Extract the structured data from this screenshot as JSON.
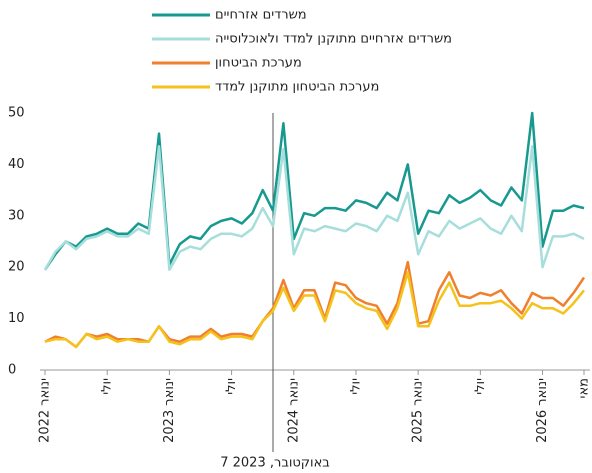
{
  "chart_data": {
    "type": "line",
    "categories": [
      "ינואר 2022",
      null,
      null,
      null,
      null,
      null,
      "יולי",
      null,
      null,
      null,
      null,
      null,
      "ינואר 2023",
      null,
      null,
      null,
      null,
      null,
      "יולי",
      null,
      null,
      null,
      null,
      null,
      "ינואר 2024",
      null,
      null,
      null,
      null,
      null,
      "יולי",
      null,
      null,
      null,
      null,
      null,
      "ינואר 2025",
      null,
      null,
      null,
      null,
      null,
      "יולי",
      null,
      null,
      null,
      null,
      null,
      "ינואר 2026",
      null,
      null,
      null,
      "מאי"
    ],
    "series": [
      {
        "name": "משרדים אזרחיים",
        "color": "#17998f",
        "values": [
          19.5,
          22.5,
          25,
          24,
          26,
          26.5,
          27.5,
          26.5,
          26.5,
          28.5,
          27.5,
          46,
          20.5,
          24.5,
          26,
          25.5,
          28,
          29,
          29.5,
          28.5,
          30.5,
          35,
          31,
          48,
          25.5,
          30.5,
          30,
          31.5,
          31.5,
          31,
          33,
          32.5,
          31.5,
          34.5,
          33,
          40,
          26.5,
          31,
          30.5,
          34,
          32.5,
          33.5,
          35,
          33,
          32,
          35.5,
          33,
          50,
          24,
          31,
          31,
          32,
          31.5
        ]
      },
      {
        "name": "משרדים אזרחיים מתוקנן למדד ולאוכלוסייה",
        "color": "#a6dedb",
        "values": [
          19.5,
          23,
          25,
          23.5,
          25.5,
          26,
          27,
          26,
          26,
          27.5,
          26.5,
          43.5,
          19.5,
          23,
          24,
          23.5,
          25.5,
          26.5,
          26.5,
          26,
          27.5,
          31.5,
          28,
          43,
          22.5,
          27.5,
          27,
          28,
          27.5,
          27,
          28.5,
          28,
          27,
          30,
          29,
          34.5,
          22.5,
          27,
          26,
          29,
          27.5,
          28.5,
          29.5,
          27.5,
          26.5,
          30,
          27,
          43.5,
          20,
          26,
          26,
          26.5,
          25.5
        ]
      },
      {
        "name": "מערכת הביטחון",
        "color": "#f07f2e",
        "values": [
          5.5,
          6.5,
          6,
          4.5,
          7,
          6.5,
          7,
          6,
          6,
          6,
          5.5,
          8.5,
          6,
          5.5,
          6.5,
          6.5,
          8,
          6.5,
          7,
          7,
          6.5,
          9.5,
          12,
          17.5,
          12,
          15.5,
          15.5,
          10,
          17,
          16.5,
          14,
          13,
          12.5,
          9,
          13,
          21,
          9,
          9.5,
          15.5,
          19,
          14.5,
          14,
          15,
          14.5,
          15.5,
          13,
          11,
          15,
          14,
          14,
          12.5,
          15,
          18
        ]
      },
      {
        "name": "מערכת הביטחון מתוקנן למדד",
        "color": "#f5c21b",
        "values": [
          5.5,
          6,
          6,
          4.5,
          7,
          6,
          6.5,
          5.5,
          6,
          5.5,
          5.5,
          8.5,
          5.5,
          5,
          6,
          6,
          7.5,
          6,
          6.5,
          6.5,
          6,
          9.5,
          11.5,
          16,
          11.5,
          14.5,
          14.5,
          9.5,
          15.5,
          15,
          13,
          12,
          11.5,
          8,
          12,
          19,
          8.5,
          8.5,
          13.5,
          17,
          12.5,
          12.5,
          13,
          13,
          13.5,
          12,
          10,
          13,
          12,
          12,
          11,
          13,
          15.5
        ]
      }
    ],
    "ylim": [
      0,
      50
    ],
    "yticks": [
      0,
      10,
      20,
      30,
      40,
      50
    ],
    "grid": false,
    "annotation": "7 באוקטובר, 2023"
  }
}
